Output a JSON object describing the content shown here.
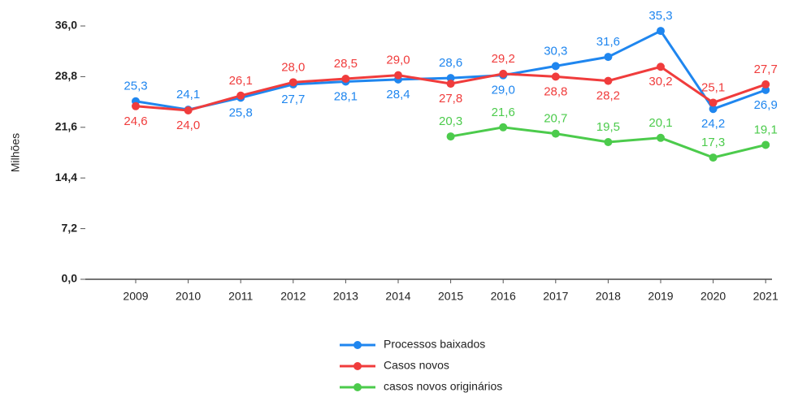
{
  "chart_data": {
    "type": "line",
    "y_label": "Milhões",
    "categories": [
      "2009",
      "2010",
      "2011",
      "2012",
      "2013",
      "2014",
      "2015",
      "2016",
      "2017",
      "2018",
      "2019",
      "2020",
      "2021"
    ],
    "ylim": [
      0,
      36
    ],
    "yticks": [
      {
        "value": 0,
        "label": "0,0"
      },
      {
        "value": 7.2,
        "label": "7,2"
      },
      {
        "value": 14.4,
        "label": "14,4"
      },
      {
        "value": 21.6,
        "label": "21,6"
      },
      {
        "value": 28.8,
        "label": "28,8"
      },
      {
        "value": 36,
        "label": "36,0"
      }
    ],
    "legend": "bottom",
    "series": [
      {
        "name": "Processos baixados",
        "color": "#1f86ef",
        "values": [
          25.3,
          24.1,
          25.8,
          27.7,
          28.1,
          28.4,
          28.6,
          29.0,
          30.3,
          31.6,
          35.3,
          24.2,
          26.9
        ],
        "value_labels": [
          "25,3",
          "24,1",
          "25,8",
          "27,7",
          "28,1",
          "28,4",
          "28,6",
          "29,0",
          "30,3",
          "31,6",
          "35,3",
          "24,2",
          "26,9"
        ]
      },
      {
        "name": "Casos novos",
        "color": "#f03c3c",
        "values": [
          24.6,
          24.0,
          26.1,
          28.0,
          28.5,
          29.0,
          27.8,
          29.2,
          28.8,
          28.2,
          30.2,
          25.1,
          27.7
        ],
        "value_labels": [
          "24,6",
          "24,0",
          "26,1",
          "28,0",
          "28,5",
          "29,0",
          "27,8",
          "29,2",
          "28,8",
          "28,2",
          "30,2",
          "25,1",
          "27,7"
        ]
      },
      {
        "name": "casos novos originários",
        "color": "#4ccb4c",
        "values": [
          null,
          null,
          null,
          null,
          null,
          null,
          20.3,
          21.6,
          20.7,
          19.5,
          20.1,
          17.3,
          19.1
        ],
        "value_labels": [
          null,
          null,
          null,
          null,
          null,
          null,
          "20,3",
          "21,6",
          "20,7",
          "19,5",
          "20,1",
          "17,3",
          "19,1"
        ]
      }
    ]
  }
}
